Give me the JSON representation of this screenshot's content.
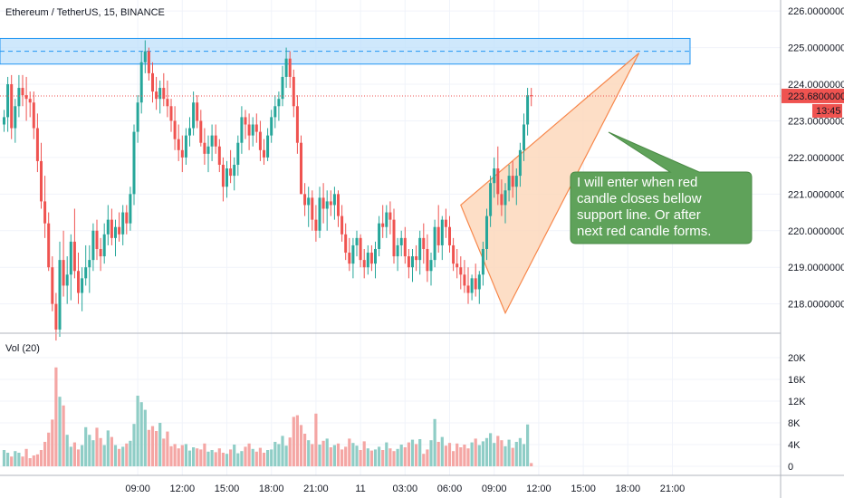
{
  "header": {
    "symbol": "Ethereum / TetherUS, 15, BINANCE",
    "volume_label": "Vol (20)"
  },
  "price_axis": {
    "ticks": [
      "226.00000000",
      "225.00000000",
      "224.00000000",
      "223.00000000",
      "222.00000000",
      "221.00000000",
      "220.00000000",
      "219.00000000",
      "218.00000000"
    ],
    "tick_values": [
      226,
      225,
      224,
      223,
      222,
      221,
      220,
      219,
      218
    ],
    "range": [
      217.2,
      226.3
    ],
    "current_price": "223.68000000",
    "countdown": "13:45"
  },
  "volume_axis": {
    "ticks": [
      "20K",
      "16K",
      "12K",
      "8K",
      "4K",
      "0"
    ],
    "tick_values": [
      20000,
      16000,
      12000,
      8000,
      4000,
      0
    ],
    "range": [
      0,
      22500
    ]
  },
  "time_axis": {
    "labels": [
      "09:00",
      "12:00",
      "15:00",
      "18:00",
      "21:00",
      "11",
      "03:00",
      "06:00",
      "09:00",
      "12:00",
      "15:00",
      "18:00",
      "21:00"
    ],
    "label_bar_index": [
      36,
      48,
      60,
      72,
      84,
      96,
      108,
      120,
      132,
      144,
      156,
      168,
      180
    ]
  },
  "annotation": {
    "text_lines": [
      "I will enter when red",
      "candle closes bellow",
      "support line. Or after",
      "next red candle forms."
    ],
    "color": "#5fa25a"
  },
  "colors": {
    "up": "#26a69a",
    "down": "#ef5350",
    "vol_up": "#8fcdc6",
    "vol_down": "#f4a6a4",
    "zone_fill": "#bbdefb",
    "zone_border": "#2196f3",
    "wedge_fill": "#fdd6b8",
    "wedge_stroke": "#f7874b",
    "price_line": "#ef5350"
  },
  "chart_data": {
    "type": "candlestick",
    "title": "Ethereum / TetherUS, 15, BINANCE",
    "interval": "15",
    "ylim": [
      217.2,
      226.3
    ],
    "volume_ylim": [
      0,
      22500
    ],
    "resistance_zone": [
      224.55,
      225.25
    ],
    "resistance_midline": 224.9,
    "wedge": [
      [
        123,
        220.7
      ],
      [
        171,
        224.85
      ],
      [
        135,
        217.75
      ]
    ],
    "candles": [
      [
        222.9,
        223.3,
        222.7,
        223.1,
        3000
      ],
      [
        223.1,
        224.2,
        222.7,
        224.0,
        2500
      ],
      [
        224.0,
        224.25,
        222.5,
        222.8,
        1800
      ],
      [
        222.8,
        223.6,
        222.4,
        223.4,
        2800
      ],
      [
        223.4,
        224.25,
        223.1,
        223.9,
        2500
      ],
      [
        223.9,
        224.25,
        223.4,
        223.7,
        1800
      ],
      [
        223.7,
        224.2,
        223.0,
        223.6,
        3200
      ],
      [
        223.6,
        223.8,
        223.1,
        223.5,
        1500
      ],
      [
        223.5,
        223.8,
        222.5,
        222.8,
        2000
      ],
      [
        222.8,
        223.2,
        221.6,
        221.9,
        2200
      ],
      [
        221.9,
        222.4,
        220.6,
        220.8,
        3000
      ],
      [
        220.8,
        221.5,
        219.8,
        220.2,
        4500
      ],
      [
        220.2,
        220.5,
        218.9,
        219.0,
        6200
      ],
      [
        219.0,
        219.3,
        217.8,
        218.0,
        8600
      ],
      [
        218.0,
        218.3,
        217.0,
        217.3,
        18200
      ],
      [
        217.3,
        219.7,
        217.1,
        219.2,
        12800
      ],
      [
        219.2,
        220.0,
        218.2,
        218.5,
        11200
      ],
      [
        218.5,
        219.3,
        218.0,
        218.8,
        5800
      ],
      [
        218.8,
        219.9,
        218.1,
        219.7,
        3600
      ],
      [
        219.7,
        220.6,
        218.7,
        218.9,
        4400
      ],
      [
        218.9,
        219.4,
        218.0,
        218.3,
        3100
      ],
      [
        218.3,
        219.0,
        217.8,
        218.7,
        3900
      ],
      [
        218.7,
        219.6,
        218.5,
        219.0,
        7200
      ],
      [
        219.0,
        219.6,
        218.3,
        219.2,
        5800
      ],
      [
        219.2,
        220.2,
        218.9,
        220.0,
        4800
      ],
      [
        220.0,
        220.3,
        219.2,
        219.5,
        7100
      ],
      [
        219.5,
        219.8,
        218.9,
        219.3,
        5200
      ],
      [
        219.3,
        220.2,
        219.1,
        219.9,
        3900
      ],
      [
        219.9,
        220.7,
        219.6,
        220.3,
        6600
      ],
      [
        220.3,
        220.6,
        219.6,
        219.8,
        5400
      ],
      [
        219.8,
        220.3,
        219.3,
        220.1,
        3900
      ],
      [
        220.1,
        220.5,
        219.7,
        219.9,
        3200
      ],
      [
        219.9,
        220.7,
        219.6,
        220.5,
        3600
      ],
      [
        220.5,
        220.7,
        219.9,
        220.2,
        4200
      ],
      [
        220.2,
        221.2,
        220.0,
        221.0,
        4700
      ],
      [
        221.0,
        222.9,
        220.7,
        222.7,
        7800
      ],
      [
        222.7,
        223.7,
        222.4,
        223.5,
        13000
      ],
      [
        223.5,
        224.9,
        223.2,
        224.6,
        11800
      ],
      [
        224.6,
        225.2,
        224.3,
        224.9,
        10400
      ],
      [
        224.9,
        225.0,
        224.1,
        224.3,
        6700
      ],
      [
        224.3,
        224.6,
        223.5,
        223.8,
        7400
      ],
      [
        223.8,
        224.2,
        223.3,
        223.6,
        6500
      ],
      [
        223.6,
        224.1,
        223.2,
        223.9,
        8000
      ],
      [
        223.9,
        224.3,
        223.4,
        223.6,
        5100
      ],
      [
        223.6,
        224.1,
        223.1,
        223.4,
        6400
      ],
      [
        223.4,
        223.6,
        222.7,
        223.0,
        3700
      ],
      [
        223.0,
        223.4,
        222.2,
        222.5,
        4100
      ],
      [
        222.5,
        222.9,
        221.9,
        222.2,
        3300
      ],
      [
        222.2,
        222.6,
        221.6,
        222.0,
        3900
      ],
      [
        222.0,
        222.8,
        221.8,
        222.6,
        4100
      ],
      [
        222.6,
        223.1,
        222.3,
        222.8,
        2900
      ],
      [
        222.8,
        223.8,
        222.6,
        223.5,
        3500
      ],
      [
        223.5,
        223.7,
        222.8,
        223.0,
        3300
      ],
      [
        223.0,
        223.3,
        222.3,
        222.4,
        3100
      ],
      [
        222.4,
        222.8,
        221.8,
        222.1,
        4200
      ],
      [
        222.1,
        222.6,
        221.6,
        222.3,
        2700
      ],
      [
        222.3,
        222.9,
        221.9,
        222.6,
        3000
      ],
      [
        222.6,
        222.9,
        222.1,
        222.3,
        2600
      ],
      [
        222.3,
        222.5,
        221.6,
        221.8,
        3300
      ],
      [
        221.8,
        222.0,
        220.8,
        221.2,
        2500
      ],
      [
        221.2,
        221.9,
        220.9,
        221.7,
        2300
      ],
      [
        221.7,
        222.2,
        221.3,
        221.5,
        3100
      ],
      [
        221.5,
        222.0,
        221.1,
        221.8,
        4000
      ],
      [
        221.8,
        222.6,
        221.5,
        222.4,
        2400
      ],
      [
        222.4,
        223.4,
        222.1,
        223.1,
        2800
      ],
      [
        223.1,
        223.3,
        222.5,
        222.9,
        3600
      ],
      [
        222.9,
        223.2,
        222.2,
        222.6,
        4200
      ],
      [
        222.6,
        223.1,
        222.3,
        222.9,
        3200
      ],
      [
        222.9,
        223.2,
        222.4,
        222.7,
        2700
      ],
      [
        222.7,
        223.0,
        221.9,
        222.2,
        3400
      ],
      [
        222.2,
        222.5,
        221.8,
        222.0,
        2500
      ],
      [
        222.0,
        222.8,
        221.9,
        222.6,
        3000
      ],
      [
        222.6,
        223.3,
        222.4,
        223.1,
        3100
      ],
      [
        223.1,
        223.7,
        222.8,
        223.4,
        4500
      ],
      [
        223.4,
        223.8,
        223.0,
        223.6,
        4100
      ],
      [
        223.6,
        224.5,
        223.4,
        224.2,
        5600
      ],
      [
        224.2,
        225.0,
        223.9,
        224.7,
        3800
      ],
      [
        224.7,
        224.9,
        223.9,
        224.2,
        5300
      ],
      [
        224.2,
        224.4,
        223.1,
        223.4,
        9100
      ],
      [
        223.4,
        223.7,
        222.1,
        222.4,
        9400
      ],
      [
        222.4,
        222.6,
        221.0,
        221.0,
        7600
      ],
      [
        221.0,
        221.3,
        220.4,
        220.7,
        6000
      ],
      [
        220.7,
        221.2,
        220.1,
        220.9,
        4800
      ],
      [
        220.9,
        221.1,
        220.0,
        220.3,
        4100
      ],
      [
        220.3,
        220.7,
        219.7,
        220.0,
        9700
      ],
      [
        220.0,
        221.2,
        219.8,
        220.9,
        4000
      ],
      [
        220.9,
        221.3,
        220.2,
        220.6,
        4700
      ],
      [
        220.6,
        221.1,
        220.0,
        220.8,
        5100
      ],
      [
        220.8,
        221.1,
        220.4,
        220.7,
        3500
      ],
      [
        220.7,
        221.2,
        220.3,
        221.0,
        3900
      ],
      [
        221.0,
        221.1,
        220.1,
        220.4,
        4200
      ],
      [
        220.4,
        220.7,
        219.7,
        219.9,
        3100
      ],
      [
        219.9,
        220.2,
        219.2,
        219.4,
        3600
      ],
      [
        219.4,
        219.8,
        218.9,
        219.1,
        5100
      ],
      [
        219.1,
        219.8,
        218.7,
        219.6,
        4300
      ],
      [
        219.6,
        220.0,
        219.3,
        219.8,
        3800
      ],
      [
        219.8,
        219.9,
        219.0,
        219.2,
        3000
      ],
      [
        219.2,
        219.5,
        218.7,
        219.0,
        4600
      ],
      [
        219.0,
        219.6,
        218.8,
        219.4,
        3300
      ],
      [
        219.4,
        219.6,
        218.9,
        219.1,
        2900
      ],
      [
        219.1,
        219.7,
        218.7,
        219.5,
        3100
      ],
      [
        219.5,
        220.4,
        219.3,
        220.2,
        3600
      ],
      [
        220.2,
        220.7,
        219.8,
        220.1,
        3000
      ],
      [
        220.1,
        220.7,
        219.8,
        220.5,
        4400
      ],
      [
        220.5,
        220.8,
        219.9,
        220.3,
        3300
      ],
      [
        220.3,
        220.6,
        219.1,
        219.3,
        2800
      ],
      [
        219.3,
        219.8,
        218.9,
        219.6,
        3200
      ],
      [
        219.6,
        220.0,
        219.3,
        219.8,
        4000
      ],
      [
        219.8,
        220.1,
        219.1,
        219.3,
        3500
      ],
      [
        219.3,
        219.5,
        218.7,
        219.0,
        4400
      ],
      [
        219.0,
        219.5,
        218.6,
        219.3,
        4900
      ],
      [
        219.3,
        219.6,
        218.9,
        219.2,
        4100
      ],
      [
        219.2,
        220.0,
        218.8,
        219.8,
        5000
      ],
      [
        219.8,
        220.2,
        219.1,
        219.5,
        2300
      ],
      [
        219.5,
        219.9,
        218.6,
        218.9,
        3100
      ],
      [
        218.9,
        219.4,
        218.5,
        219.2,
        4800
      ],
      [
        219.2,
        220.3,
        219.0,
        220.1,
        8700
      ],
      [
        220.1,
        220.7,
        219.4,
        219.6,
        4500
      ],
      [
        219.6,
        220.4,
        219.2,
        220.3,
        5400
      ],
      [
        220.3,
        220.6,
        219.8,
        220.1,
        3800
      ],
      [
        220.1,
        220.4,
        219.4,
        219.6,
        4300
      ],
      [
        219.6,
        219.8,
        218.9,
        219.1,
        2800
      ],
      [
        219.1,
        219.5,
        218.7,
        219.0,
        4200
      ],
      [
        219.0,
        219.3,
        218.4,
        218.8,
        3500
      ],
      [
        218.8,
        219.2,
        218.3,
        218.5,
        4000
      ],
      [
        218.5,
        219.0,
        218.0,
        218.3,
        3300
      ],
      [
        218.3,
        218.8,
        218.1,
        218.7,
        4400
      ],
      [
        218.7,
        219.1,
        218.2,
        218.4,
        5100
      ],
      [
        218.4,
        218.9,
        218.0,
        218.8,
        3900
      ],
      [
        218.8,
        219.7,
        218.5,
        219.5,
        4600
      ],
      [
        219.5,
        220.6,
        219.2,
        220.4,
        5200
      ],
      [
        220.4,
        221.5,
        220.1,
        221.3,
        6100
      ],
      [
        221.3,
        222.0,
        220.9,
        221.7,
        4300
      ],
      [
        221.7,
        222.3,
        220.7,
        221.0,
        5600
      ],
      [
        221.0,
        221.4,
        220.4,
        220.7,
        4800
      ],
      [
        220.7,
        221.3,
        220.2,
        221.1,
        3700
      ],
      [
        221.1,
        221.8,
        220.8,
        221.5,
        4900
      ],
      [
        221.5,
        221.9,
        220.9,
        221.2,
        3400
      ],
      [
        221.2,
        221.7,
        220.7,
        221.5,
        4500
      ],
      [
        221.5,
        222.4,
        221.2,
        222.2,
        5200
      ],
      [
        222.2,
        223.2,
        221.9,
        222.9,
        4100
      ],
      [
        222.9,
        223.9,
        222.6,
        223.7,
        7700
      ],
      [
        223.7,
        223.9,
        223.4,
        223.68,
        600
      ]
    ]
  }
}
